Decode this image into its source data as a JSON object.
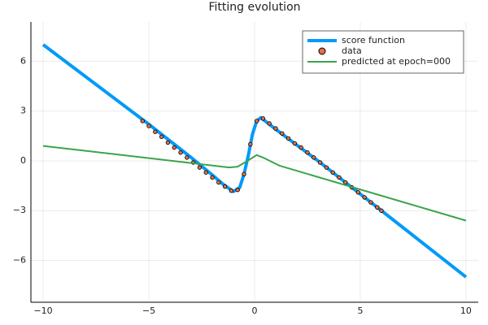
{
  "chart_data": {
    "type": "line",
    "title": "Fitting evolution",
    "xlim": [
      -10.58,
      10.58
    ],
    "ylim": [
      -8.52,
      8.37
    ],
    "xticks": [
      {
        "value": -10,
        "label": "−10"
      },
      {
        "value": -5,
        "label": "−5"
      },
      0,
      5,
      10
    ],
    "yticks": [
      {
        "value": -6,
        "label": "−6"
      },
      {
        "value": -3,
        "label": "−3"
      },
      0,
      3,
      6
    ],
    "grid": true,
    "legend": "top-right",
    "series": [
      {
        "name": "score function",
        "color": "#009af9",
        "kind": "line",
        "x": [
          -10,
          -5,
          -3,
          -2,
          -1.5,
          -1,
          -0.7,
          -0.5,
          -0.3,
          -0.1,
          0.1,
          0.3,
          0.6,
          1,
          2,
          3,
          4,
          5,
          6,
          10
        ],
        "values": [
          7.0,
          2.2,
          0.2,
          -0.85,
          -1.4,
          -1.85,
          -1.6,
          -0.8,
          0.3,
          1.6,
          2.4,
          2.6,
          2.3,
          1.9,
          0.95,
          0,
          -1.0,
          -2.0,
          -3.0,
          -7.0
        ]
      },
      {
        "name": "data",
        "color": "#e26f46",
        "kind": "scatter",
        "x": [
          -5.3,
          -5.0,
          -4.7,
          -4.4,
          -4.1,
          -3.8,
          -3.5,
          -3.2,
          -2.9,
          -2.6,
          -2.3,
          -2.0,
          -1.7,
          -1.4,
          -1.1,
          -0.8,
          -0.5,
          -0.2,
          0.1,
          0.4,
          0.7,
          1.0,
          1.3,
          1.6,
          1.9,
          2.2,
          2.5,
          2.8,
          3.1,
          3.4,
          3.7,
          4.0,
          4.3,
          4.6,
          4.9,
          5.2,
          5.5,
          5.8,
          6.0
        ],
        "values": [
          2.4,
          2.1,
          1.75,
          1.45,
          1.1,
          0.8,
          0.5,
          0.2,
          -0.1,
          -0.4,
          -0.7,
          -1.0,
          -1.3,
          -1.55,
          -1.8,
          -1.75,
          -0.8,
          1.0,
          2.4,
          2.55,
          2.25,
          1.95,
          1.65,
          1.35,
          1.05,
          0.8,
          0.5,
          0.2,
          -0.1,
          -0.4,
          -0.7,
          -1.0,
          -1.3,
          -1.6,
          -1.9,
          -2.2,
          -2.5,
          -2.8,
          -3.0
        ]
      },
      {
        "name": "predicted at epoch=000",
        "color": "#3ba34a",
        "kind": "line",
        "x": [
          -10,
          -1.2,
          -0.8,
          -0.4,
          0.1,
          0.4,
          1.2,
          10
        ],
        "values": [
          0.9,
          -0.4,
          -0.35,
          -0.05,
          0.35,
          0.2,
          -0.3,
          -3.6
        ]
      }
    ]
  }
}
